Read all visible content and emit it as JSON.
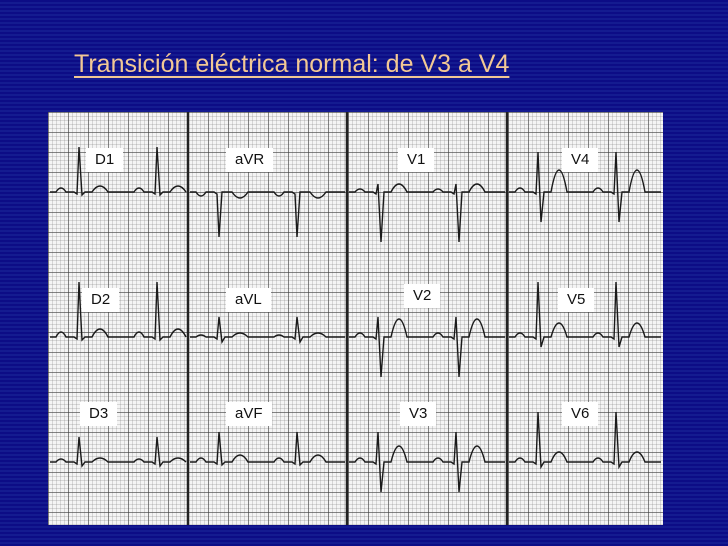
{
  "slide": {
    "title": "Transición eléctrica normal: de V3 a V4",
    "title_color": "#f2c894",
    "background_color": "#0c0c86"
  },
  "ecg": {
    "leads": [
      {
        "id": "D1",
        "label": "D1"
      },
      {
        "id": "aVR",
        "label": "aVR"
      },
      {
        "id": "V1",
        "label": "V1"
      },
      {
        "id": "V4",
        "label": "V4"
      },
      {
        "id": "D2",
        "label": "D2"
      },
      {
        "id": "aVL",
        "label": "aVL"
      },
      {
        "id": "V2",
        "label": "V2"
      },
      {
        "id": "V5",
        "label": "V5"
      },
      {
        "id": "D3",
        "label": "D3"
      },
      {
        "id": "aVF",
        "label": "aVF"
      },
      {
        "id": "V3",
        "label": "V3"
      },
      {
        "id": "V6",
        "label": "V6"
      }
    ]
  }
}
